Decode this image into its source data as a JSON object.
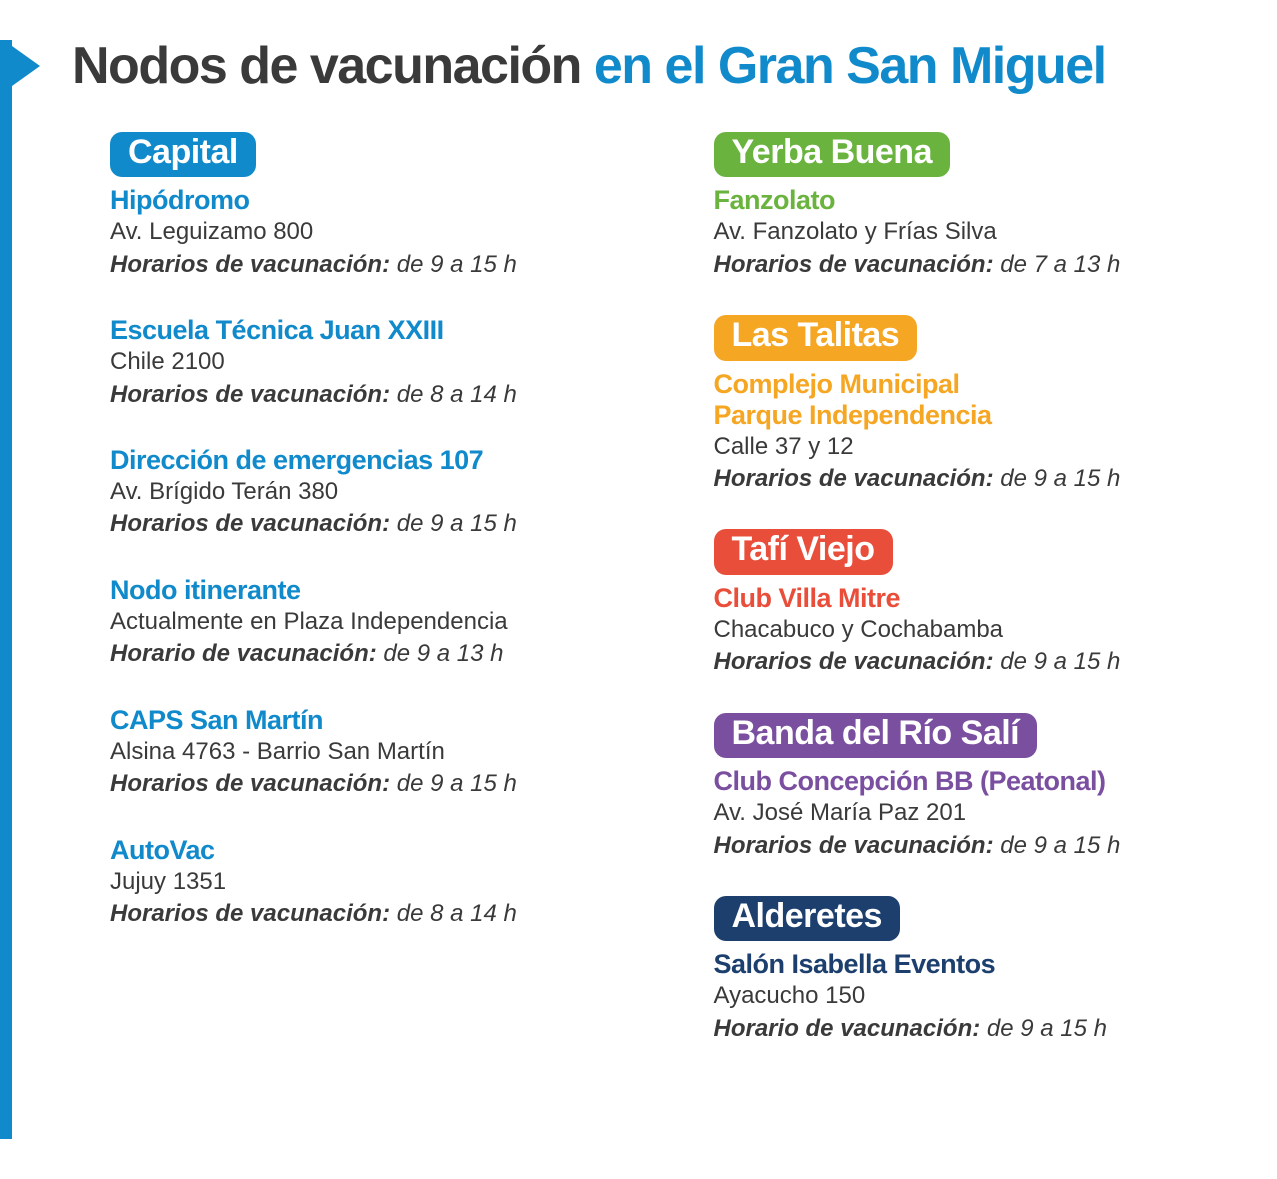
{
  "colors": {
    "brand_blue": "#118acb",
    "text_dark": "#3a3a3a",
    "capital": "#118acb",
    "yerba_buena": "#6ab33e",
    "las_talitas": "#f5a623",
    "tafi_viejo": "#e94e3a",
    "banda": "#7a4fa0",
    "alderetes": "#1c3f6e"
  },
  "title_dark": "Nodos de vacunación ",
  "title_blue": "en el Gran San Miguel",
  "hours_label": "Horarios de vacunación:",
  "hours_label_singular": "Horario de vacunación:",
  "columns": [
    [
      {
        "district": "Capital",
        "color_key": "capital",
        "locations": [
          {
            "name": "Hipódromo",
            "address": "Av. Leguizamo 800",
            "hours": "de 9 a 15 h",
            "label_plural": true
          },
          {
            "name": "Escuela Técnica Juan XXIII",
            "address": "Chile 2100",
            "hours": "de 8 a 14 h",
            "label_plural": true
          },
          {
            "name": "Dirección de emergencias 107",
            "address": "Av. Brígido Terán 380",
            "hours": "de 9 a 15 h",
            "label_plural": true
          },
          {
            "name": "Nodo itinerante",
            "address": "Actualmente en Plaza Independencia",
            "hours": "de 9 a 13 h",
            "label_plural": false
          },
          {
            "name": "CAPS San Martín",
            "address": "Alsina 4763 - Barrio San Martín",
            "hours": "de 9 a 15 h",
            "label_plural": true
          },
          {
            "name": "AutoVac",
            "address": "Jujuy 1351",
            "hours": "de 8 a 14 h",
            "label_plural": true
          }
        ]
      }
    ],
    [
      {
        "district": "Yerba Buena",
        "color_key": "yerba_buena",
        "locations": [
          {
            "name": "Fanzolato",
            "address": "Av. Fanzolato y Frías Silva",
            "hours": "de 7 a 13 h",
            "label_plural": true
          }
        ]
      },
      {
        "district": "Las Talitas",
        "color_key": "las_talitas",
        "locations": [
          {
            "name": "Complejo Municipal\nParque Independencia",
            "address": "Calle 37 y 12",
            "hours": "de 9 a 15 h",
            "label_plural": true
          }
        ]
      },
      {
        "district": "Tafí Viejo",
        "color_key": "tafi_viejo",
        "locations": [
          {
            "name": "Club Villa Mitre",
            "address": "Chacabuco y Cochabamba",
            "hours": "de 9 a 15 h",
            "label_plural": true
          }
        ]
      },
      {
        "district": "Banda del Río Salí",
        "color_key": "banda",
        "locations": [
          {
            "name": "Club Concepción BB  (Peatonal)",
            "address": "Av. José María Paz 201",
            "hours": "de 9 a 15 h",
            "label_plural": true
          }
        ]
      },
      {
        "district": "Alderetes",
        "color_key": "alderetes",
        "locations": [
          {
            "name": "Salón Isabella Eventos",
            "address": "Ayacucho 150",
            "hours": "de 9 a 15 h",
            "label_plural": false
          }
        ]
      }
    ]
  ]
}
